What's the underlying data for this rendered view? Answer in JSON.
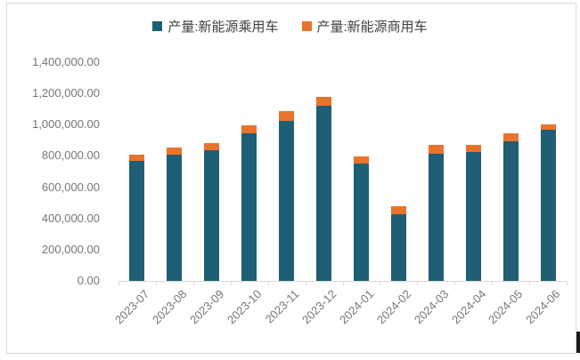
{
  "chart_data": {
    "type": "bar",
    "stacked": true,
    "title": "",
    "xlabel": "",
    "ylabel": "",
    "categories": [
      "2023-07",
      "2023-08",
      "2023-09",
      "2023-10",
      "2023-11",
      "2023-12",
      "2024-01",
      "2024-02",
      "2024-03",
      "2024-04",
      "2024-05",
      "2024-06"
    ],
    "series": [
      {
        "name": "产量:新能源乘用车",
        "color": "#1E5F75",
        "values": [
          768000,
          808000,
          837000,
          945000,
          1024000,
          1119000,
          751000,
          427000,
          813000,
          825000,
          891000,
          966000
        ]
      },
      {
        "name": "产量:新能源商用车",
        "color": "#E8732C",
        "values": [
          40000,
          45000,
          45000,
          53000,
          63000,
          59000,
          46000,
          49000,
          57000,
          48000,
          51000,
          38000
        ]
      }
    ],
    "ylim": [
      0,
      1400000
    ],
    "ytick_step": 200000,
    "ytick_labels_top_to_bottom": [
      "1,400,000.00",
      "1,200,000.00",
      "1,000,000.00",
      "800,000.00",
      "600,000.00",
      "400,000.00",
      "200,000.00",
      "0.00"
    ],
    "grid": false,
    "legend_position": "top"
  },
  "legend": {
    "items": [
      {
        "label": "产量:新能源乘用车",
        "color": "#1E5F75"
      },
      {
        "label": "产量:新能源商用车",
        "color": "#E8732C"
      }
    ]
  },
  "colors": {
    "axis": "#D9D9D9",
    "tick_label": "#767676",
    "legend_text": "#404040",
    "frame_border": "#D9D9D9",
    "edge_artifact": "#1A1A1A"
  }
}
